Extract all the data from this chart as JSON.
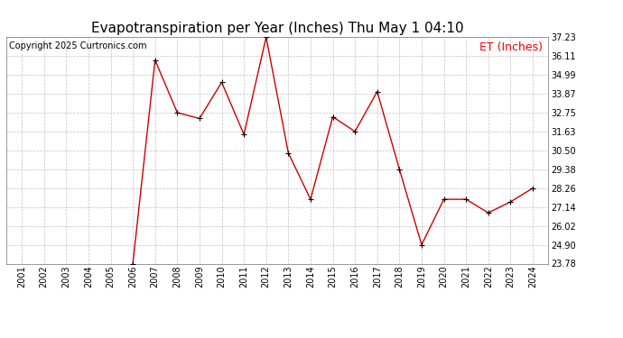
{
  "title": "Evapotranspiration per Year (Inches) Thu May 1 04:10",
  "copyright": "Copyright 2025 Curtronics.com",
  "legend_label": "ET (Inches)",
  "years": [
    2001,
    2002,
    2003,
    2004,
    2005,
    2006,
    2007,
    2008,
    2009,
    2010,
    2011,
    2012,
    2013,
    2014,
    2015,
    2016,
    2017,
    2018,
    2019,
    2020,
    2021,
    2022,
    2023,
    2024
  ],
  "values": [
    null,
    null,
    null,
    null,
    null,
    23.78,
    35.87,
    32.75,
    32.4,
    34.55,
    31.45,
    37.23,
    30.35,
    27.6,
    32.5,
    31.63,
    34.0,
    29.38,
    24.9,
    27.6,
    27.6,
    26.8,
    27.45,
    28.26
  ],
  "line_color": "#cc0000",
  "marker_color": "#000000",
  "bg_color": "#ffffff",
  "grid_color": "#c0c0c0",
  "yticks": [
    23.78,
    24.9,
    26.02,
    27.14,
    28.26,
    29.38,
    30.5,
    31.63,
    32.75,
    33.87,
    34.99,
    36.11,
    37.23
  ],
  "ylim_min": 23.78,
  "ylim_max": 37.23,
  "title_fontsize": 11,
  "copyright_fontsize": 7,
  "legend_fontsize": 9,
  "tick_fontsize": 7
}
